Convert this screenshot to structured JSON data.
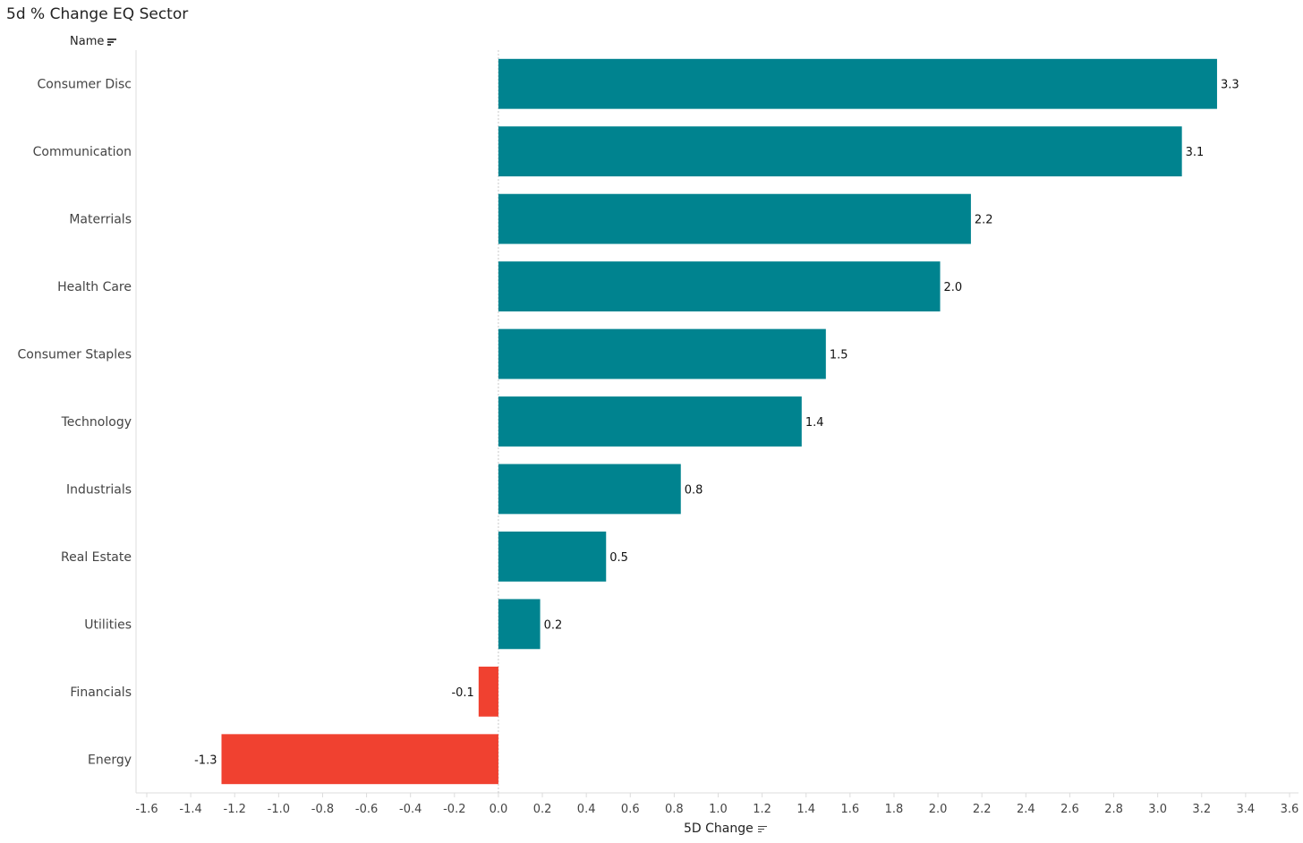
{
  "title": "5d % Change EQ Sector",
  "name_header": "Name",
  "colors": {
    "positive": "#00838f",
    "negative": "#f04130",
    "axis": "#dcdcdc",
    "zero": "#c8c8c8"
  },
  "chart_data": {
    "type": "bar",
    "orientation": "horizontal",
    "title": "5d % Change EQ Sector",
    "xlabel": "5D Change",
    "ylabel": "Name",
    "xlim": [
      -1.6,
      3.6
    ],
    "xticks": [
      -1.6,
      -1.4,
      -1.2,
      -1.0,
      -0.8,
      -0.6,
      -0.4,
      -0.2,
      0.0,
      0.2,
      0.4,
      0.6,
      0.8,
      1.0,
      1.2,
      1.4,
      1.6,
      1.8,
      2.0,
      2.2,
      2.4,
      2.6,
      2.8,
      3.0,
      3.2,
      3.4,
      3.6
    ],
    "xtick_labels": [
      "-1.6",
      "-1.4",
      "-1.2",
      "-1.0",
      "-0.8",
      "-0.6",
      "-0.4",
      "-0.2",
      "0.0",
      "0.2",
      "0.4",
      "0.6",
      "0.8",
      "1.0",
      "1.2",
      "1.4",
      "1.6",
      "1.8",
      "2.0",
      "2.2",
      "2.4",
      "2.6",
      "2.8",
      "3.0",
      "3.2",
      "3.4",
      "3.6"
    ],
    "categories": [
      "Consumer Disc",
      "Communication",
      "Materrials",
      "Health Care",
      "Consumer Staples",
      "Technology",
      "Industrials",
      "Real Estate",
      "Utilities",
      "Financials",
      "Energy"
    ],
    "values": [
      3.27,
      3.11,
      2.15,
      2.01,
      1.49,
      1.38,
      0.83,
      0.49,
      0.19,
      -0.09,
      -1.26
    ],
    "value_labels": [
      "3.3",
      "3.1",
      "2.2",
      "2.0",
      "1.5",
      "1.4",
      "0.8",
      "0.5",
      "0.2",
      "-0.1",
      "-1.3"
    ],
    "grid": false,
    "legend": "none"
  }
}
